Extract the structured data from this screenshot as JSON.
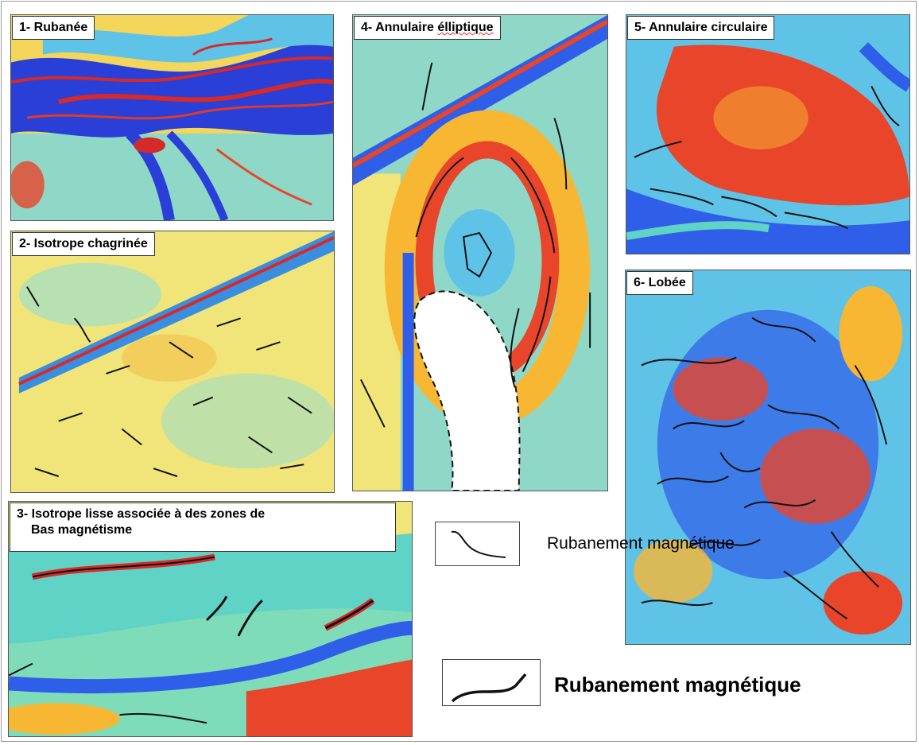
{
  "panels": [
    {
      "id": 1,
      "label": "1- Rubanée"
    },
    {
      "id": 2,
      "label": "2- Isotrope chagrinée"
    },
    {
      "id": 3,
      "label_line1": "3- Isotrope lisse associée à des zones de",
      "label_line2": "Bas magnétisme"
    },
    {
      "id": 4,
      "label": "4- Annulaire élliptique"
    },
    {
      "id": 5,
      "label": "5- Annulaire circulaire"
    },
    {
      "id": 6,
      "label": "6- Lobée"
    }
  ],
  "legend": {
    "thin_line_label": "Rubanement magnétique",
    "thick_line_label": "Rubanement magnétique"
  },
  "colors": {
    "high": "#e8452a",
    "mid_high": "#f7b733",
    "mid": "#e6f06a",
    "mid_low": "#5fd3c6",
    "low": "#2f5ee8",
    "line": "#111111"
  }
}
